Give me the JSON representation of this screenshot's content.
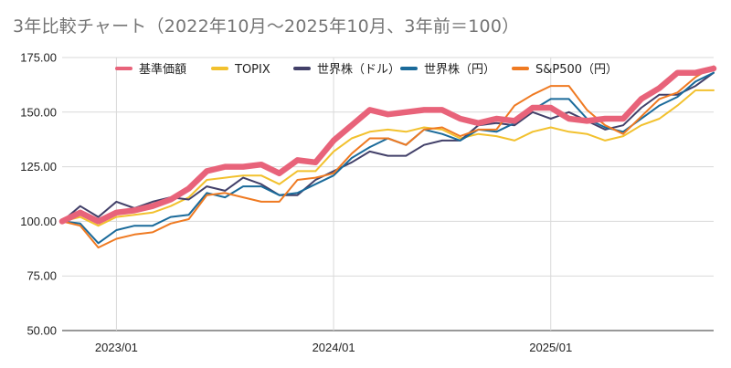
{
  "chart_data": {
    "type": "line",
    "title": "3年比較チャート（2022年10月〜2025年10月、3年前＝100）",
    "xlabel": "",
    "ylabel": "",
    "ylim": [
      50,
      175
    ],
    "yticks": [
      "50.00",
      "75.00",
      "100.00",
      "125.00",
      "150.00",
      "175.00"
    ],
    "xticks": [
      "2023/01",
      "2024/01",
      "2025/01"
    ],
    "grid": true,
    "legend_position": "top",
    "x": [
      "2022/10",
      "2022/11",
      "2022/12",
      "2023/01",
      "2023/02",
      "2023/03",
      "2023/04",
      "2023/05",
      "2023/06",
      "2023/07",
      "2023/08",
      "2023/09",
      "2023/10",
      "2023/11",
      "2023/12",
      "2024/01",
      "2024/02",
      "2024/03",
      "2024/04",
      "2024/05",
      "2024/06",
      "2024/07",
      "2024/08",
      "2024/09",
      "2024/10",
      "2024/11",
      "2024/12",
      "2025/01",
      "2025/02",
      "2025/03",
      "2025/04",
      "2025/05",
      "2025/06",
      "2025/07",
      "2025/08",
      "2025/09",
      "2025/10"
    ],
    "series": [
      {
        "name": "基準価額",
        "color": "#e8637a",
        "width": 6.5,
        "values": [
          100,
          104,
          100,
          104,
          105,
          107,
          110,
          115,
          123,
          125,
          125,
          126,
          122,
          128,
          127,
          137,
          144,
          151,
          149,
          150,
          151,
          151,
          147,
          145,
          147,
          146,
          152,
          152,
          147,
          146,
          147,
          147,
          156,
          161,
          168,
          168,
          170
        ]
      },
      {
        "name": "TOPIX",
        "color": "#f2c12e",
        "width": 2,
        "values": [
          100,
          102,
          98,
          102,
          103,
          104,
          107,
          111,
          119,
          120,
          121,
          121,
          117,
          123,
          123,
          132,
          138,
          141,
          142,
          141,
          143,
          142,
          138,
          140,
          139,
          137,
          141,
          143,
          141,
          140,
          137,
          139,
          144,
          147,
          153,
          160,
          160
        ]
      },
      {
        "name": "世界株（ドル）",
        "color": "#424069",
        "width": 2,
        "values": [
          100,
          107,
          102,
          109,
          106,
          109,
          111,
          110,
          116,
          114,
          120,
          117,
          112,
          112,
          119,
          123,
          127,
          132,
          130,
          130,
          135,
          137,
          137,
          144,
          145,
          144,
          150,
          147,
          150,
          146,
          142,
          144,
          152,
          158,
          158,
          162,
          168
        ]
      },
      {
        "name": "世界株（円）",
        "color": "#1a6a9a",
        "width": 2,
        "values": [
          100,
          99,
          90,
          96,
          98,
          98,
          102,
          103,
          113,
          111,
          116,
          116,
          112,
          113,
          117,
          121,
          129,
          134,
          138,
          135,
          142,
          140,
          137,
          142,
          141,
          145,
          151,
          156,
          156,
          147,
          143,
          141,
          147,
          153,
          157,
          164,
          168
        ]
      },
      {
        "name": "S&P500（円）",
        "color": "#ef7a22",
        "width": 2,
        "values": [
          100,
          98,
          88,
          92,
          94,
          95,
          99,
          101,
          112,
          113,
          111,
          109,
          109,
          119,
          120,
          122,
          131,
          138,
          138,
          135,
          142,
          143,
          139,
          142,
          142,
          153,
          158,
          162,
          162,
          151,
          144,
          140,
          148,
          156,
          159,
          166,
          171
        ]
      }
    ]
  }
}
